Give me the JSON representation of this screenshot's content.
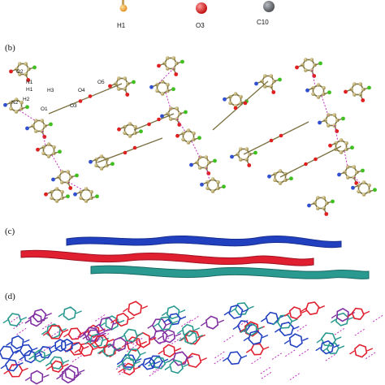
{
  "figure": {
    "top_atom_labels": [
      "H1",
      "O3",
      "C10"
    ],
    "panels": [
      {
        "id": "b",
        "label": "(b)"
      },
      {
        "id": "c",
        "label": "(c)"
      },
      {
        "id": "d",
        "label": "(d)"
      }
    ],
    "panel_b_atom_labels": [
      "O2",
      "N1",
      "H1",
      "N2",
      "H2",
      "O1",
      "H3",
      "O5",
      "O4",
      "O3"
    ],
    "colors": {
      "carbon": "#b8a660",
      "oxygen": "#e02020",
      "nitrogen": "#3050d0",
      "chlorine": "#40c020",
      "bond": "#7a7040",
      "hbond": "#c030c0",
      "chain_blue": "#2040c0",
      "chain_red": "#e02030",
      "chain_teal": "#2a9a90"
    }
  }
}
